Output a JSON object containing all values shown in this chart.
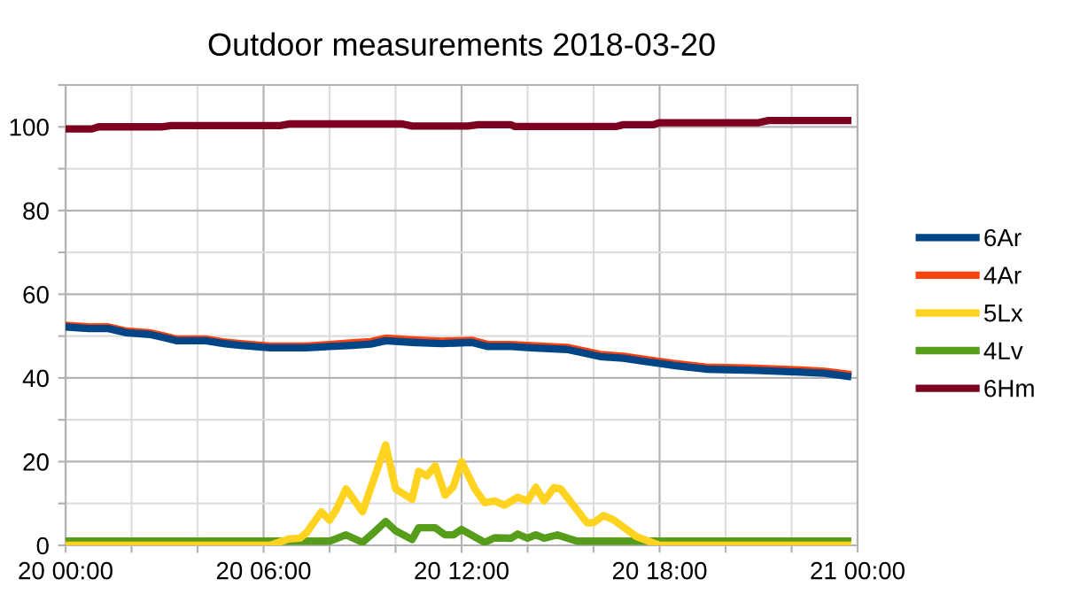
{
  "chart_data": {
    "type": "line",
    "title": "Outdoor measurements 2018-03-20",
    "xlim": [
      "2018-03-20T00:00",
      "2018-03-21T00:00"
    ],
    "ylim": [
      0,
      110
    ],
    "xticks": [
      {
        "value": "2018-03-20T00:00",
        "label": "20 00:00"
      },
      {
        "value": "2018-03-20T02:00",
        "label": null
      },
      {
        "value": "2018-03-20T04:00",
        "label": null
      },
      {
        "value": "2018-03-20T06:00",
        "label": "20 06:00"
      },
      {
        "value": "2018-03-20T08:00",
        "label": null
      },
      {
        "value": "2018-03-20T10:00",
        "label": null
      },
      {
        "value": "2018-03-20T12:00",
        "label": "20 12:00"
      },
      {
        "value": "2018-03-20T14:00",
        "label": null
      },
      {
        "value": "2018-03-20T16:00",
        "label": null
      },
      {
        "value": "2018-03-20T18:00",
        "label": "20 18:00"
      },
      {
        "value": "2018-03-20T20:00",
        "label": null
      },
      {
        "value": "2018-03-20T22:00",
        "label": null
      },
      {
        "value": "2018-03-21T00:00",
        "label": "21 00:00"
      }
    ],
    "yticks": [
      0,
      {
        "value": 10,
        "label": null
      },
      20,
      {
        "value": 30,
        "label": null
      },
      40,
      {
        "value": 50,
        "label": null
      },
      60,
      {
        "value": 70,
        "label": null
      },
      80,
      {
        "value": 90,
        "label": null
      },
      100,
      {
        "value": 110,
        "label": null
      }
    ],
    "grid": true,
    "legend": "right",
    "marker": "none",
    "line_style": "solid",
    "series": [
      {
        "name": "6Ar",
        "color": "#004586",
        "x": [
          "2018-03-20T00:00",
          "2018-03-20T00:42",
          "2018-03-20T01:18",
          "2018-03-20T01:51",
          "2018-03-20T02:33",
          "2018-03-20T03:00",
          "2018-03-20T03:21",
          "2018-03-20T04:15",
          "2018-03-20T04:48",
          "2018-03-20T05:18",
          "2018-03-20T06:12",
          "2018-03-20T07:18",
          "2018-03-20T08:00",
          "2018-03-20T08:42",
          "2018-03-20T09:15",
          "2018-03-20T09:42",
          "2018-03-20T10:30",
          "2018-03-20T11:24",
          "2018-03-20T12:18",
          "2018-03-20T12:48",
          "2018-03-20T13:30",
          "2018-03-20T14:06",
          "2018-03-20T15:12",
          "2018-03-20T16:12",
          "2018-03-20T16:54",
          "2018-03-20T17:30",
          "2018-03-20T18:24",
          "2018-03-20T19:24",
          "2018-03-20T20:54",
          "2018-03-20T22:18",
          "2018-03-20T23:00",
          "2018-03-20T23:42"
        ],
        "values": [
          52.2,
          51.8,
          51.8,
          50.8,
          50.4,
          49.6,
          48.9,
          48.9,
          48.2,
          47.8,
          47.2,
          47.2,
          47.5,
          47.8,
          48.1,
          48.9,
          48.5,
          48.2,
          48.5,
          47.5,
          47.5,
          47.2,
          46.8,
          45.1,
          44.7,
          44.0,
          43.0,
          42.1,
          41.8,
          41.4,
          41.1,
          40.4
        ]
      },
      {
        "name": "4Ar",
        "color": "#ff420e",
        "x": [
          "2018-03-20T00:00",
          "2018-03-20T00:42",
          "2018-03-20T01:18",
          "2018-03-20T01:51",
          "2018-03-20T02:33",
          "2018-03-20T03:00",
          "2018-03-20T03:21",
          "2018-03-20T04:15",
          "2018-03-20T04:48",
          "2018-03-20T05:18",
          "2018-03-20T06:12",
          "2018-03-20T07:18",
          "2018-03-20T08:00",
          "2018-03-20T08:42",
          "2018-03-20T09:15",
          "2018-03-20T09:42",
          "2018-03-20T10:30",
          "2018-03-20T11:24",
          "2018-03-20T12:18",
          "2018-03-20T12:48",
          "2018-03-20T13:30",
          "2018-03-20T14:06",
          "2018-03-20T15:12",
          "2018-03-20T16:12",
          "2018-03-20T16:54",
          "2018-03-20T17:30",
          "2018-03-20T18:24",
          "2018-03-20T19:24",
          "2018-03-20T20:54",
          "2018-03-20T22:18",
          "2018-03-20T23:00",
          "2018-03-20T23:42"
        ],
        "values": [
          52.6,
          52.2,
          52.2,
          51.2,
          50.8,
          50.0,
          49.3,
          49.3,
          48.6,
          48.2,
          47.6,
          47.6,
          48.0,
          48.4,
          48.7,
          49.5,
          49.1,
          48.8,
          49.0,
          48.0,
          48.0,
          47.7,
          47.3,
          45.6,
          45.2,
          44.5,
          43.5,
          42.6,
          42.3,
          41.9,
          41.6,
          40.9
        ]
      },
      {
        "name": "5Lx",
        "color": "#ffd320",
        "x": [
          "2018-03-20T00:00",
          "2018-03-20T06:12",
          "2018-03-20T06:45",
          "2018-03-20T07:06",
          "2018-03-20T07:18",
          "2018-03-20T07:45",
          "2018-03-20T08:00",
          "2018-03-20T08:12",
          "2018-03-20T08:30",
          "2018-03-20T09:00",
          "2018-03-20T09:42",
          "2018-03-20T10:00",
          "2018-03-20T10:30",
          "2018-03-20T10:42",
          "2018-03-20T10:57",
          "2018-03-20T11:12",
          "2018-03-20T11:30",
          "2018-03-20T11:45",
          "2018-03-20T12:00",
          "2018-03-20T12:24",
          "2018-03-20T12:42",
          "2018-03-20T13:00",
          "2018-03-20T13:18",
          "2018-03-20T13:42",
          "2018-03-20T14:00",
          "2018-03-20T14:15",
          "2018-03-20T14:30",
          "2018-03-20T14:48",
          "2018-03-20T15:00",
          "2018-03-20T15:48",
          "2018-03-20T16:00",
          "2018-03-20T16:18",
          "2018-03-20T16:36",
          "2018-03-20T17:18",
          "2018-03-20T18:00",
          "2018-03-20T23:42"
        ],
        "values": [
          0,
          0,
          1.5,
          1.7,
          3,
          8,
          6,
          8.5,
          13.5,
          8,
          24,
          13.5,
          11,
          17.7,
          16.6,
          19,
          12,
          14,
          20,
          13.5,
          10.2,
          10.6,
          9.6,
          11.5,
          10.6,
          13.9,
          10.6,
          13.8,
          13.5,
          5.4,
          5.4,
          7.1,
          6.1,
          2.1,
          0,
          0
        ]
      },
      {
        "name": "4Lv",
        "color": "#579d1c",
        "x": [
          "2018-03-20T00:00",
          "2018-03-20T08:00",
          "2018-03-20T08:30",
          "2018-03-20T09:00",
          "2018-03-20T09:18",
          "2018-03-20T09:42",
          "2018-03-20T10:00",
          "2018-03-20T10:30",
          "2018-03-20T10:42",
          "2018-03-20T11:12",
          "2018-03-20T11:30",
          "2018-03-20T11:45",
          "2018-03-20T12:00",
          "2018-03-20T12:42",
          "2018-03-20T13:00",
          "2018-03-20T13:30",
          "2018-03-20T13:42",
          "2018-03-20T14:00",
          "2018-03-20T14:15",
          "2018-03-20T14:30",
          "2018-03-20T14:54",
          "2018-03-20T15:30",
          "2018-03-20T23:42"
        ],
        "values": [
          1,
          1,
          2.5,
          0.7,
          2.8,
          5.7,
          3.5,
          1.4,
          4.2,
          4.2,
          2.5,
          2.5,
          3.8,
          0.7,
          1.8,
          1.7,
          2.7,
          1.7,
          2.5,
          1.7,
          2.5,
          1,
          1
        ]
      },
      {
        "name": "6Hm",
        "color": "#7e0021",
        "x": [
          "2018-03-20T00:00",
          "2018-03-20T00:48",
          "2018-03-20T01:00",
          "2018-03-20T02:54",
          "2018-03-20T03:12",
          "2018-03-20T06:30",
          "2018-03-20T06:48",
          "2018-03-20T10:12",
          "2018-03-20T10:30",
          "2018-03-20T12:12",
          "2018-03-20T12:30",
          "2018-03-20T13:30",
          "2018-03-20T13:36",
          "2018-03-20T16:42",
          "2018-03-20T16:54",
          "2018-03-20T17:48",
          "2018-03-20T18:00",
          "2018-03-20T21:00",
          "2018-03-20T21:18",
          "2018-03-20T23:42"
        ],
        "values": [
          99.5,
          99.5,
          100,
          100,
          100.3,
          100.3,
          100.7,
          100.7,
          100.2,
          100.2,
          100.5,
          100.5,
          100.1,
          100.1,
          100.5,
          100.5,
          101,
          101,
          101.5,
          101.5
        ]
      }
    ]
  }
}
